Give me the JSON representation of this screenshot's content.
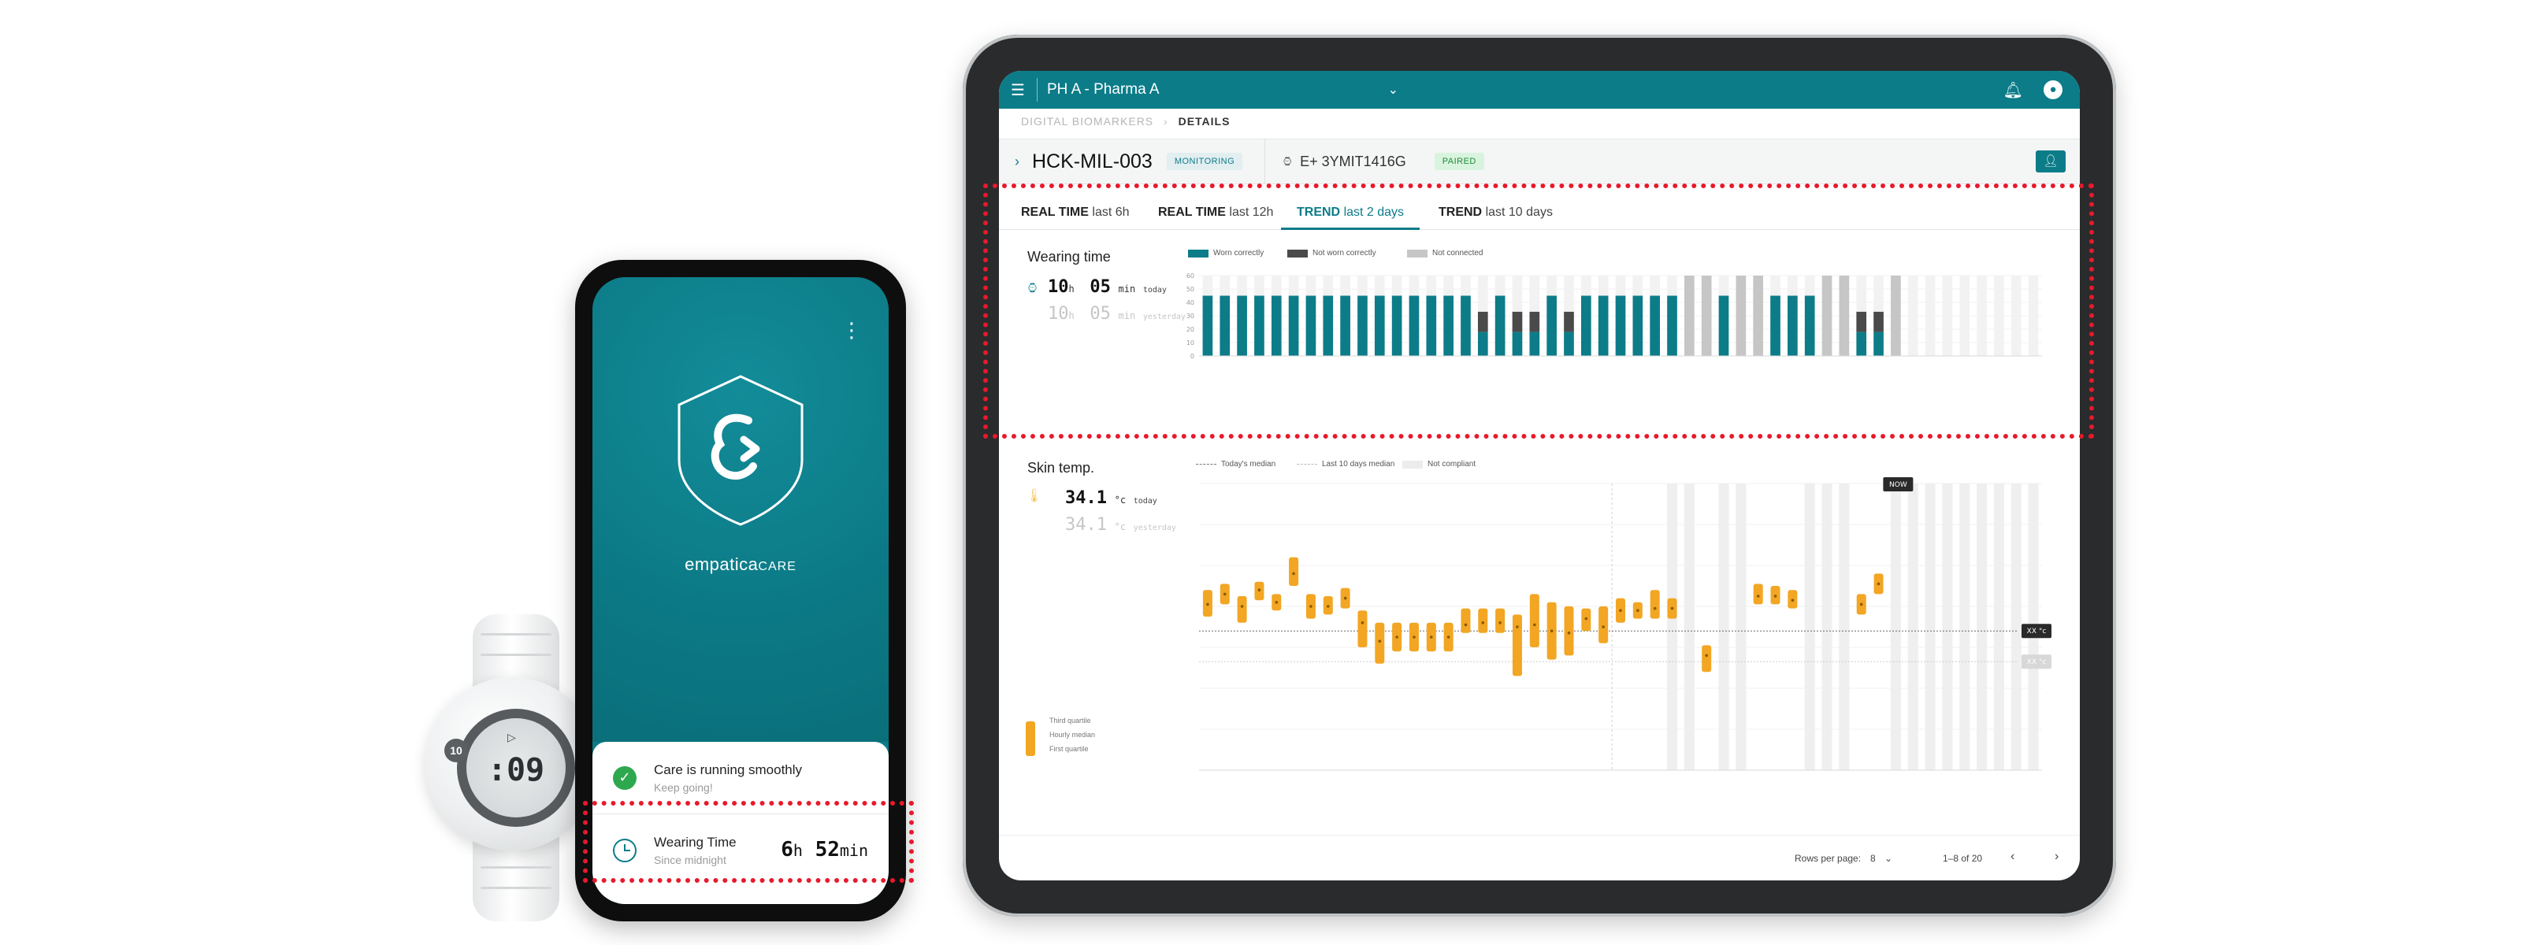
{
  "watch": {
    "time": ":09",
    "badge": "10"
  },
  "phone": {
    "brand": "empatica",
    "brand_suffix": "CARE",
    "status_title": "Care is running smoothly",
    "status_sub": "Keep going!",
    "wear_title": "Wearing Time",
    "wear_sub": "Since midnight",
    "wear_hours": "6",
    "wear_hours_unit": "h",
    "wear_minutes": "52",
    "wear_minutes_unit": "min"
  },
  "tablet": {
    "org": "PH A - Pharma A",
    "breadcrumb": [
      "DIGITAL BIOMARKERS",
      "DETAILS"
    ],
    "device_id": "HCK-MIL-003",
    "monitoring_tag": "MONITORING",
    "serial": "E+ 3YMIT1416G",
    "paired_tag": "PAIRED",
    "tabs": [
      {
        "bold": "REAL TIME",
        "rest": "last 6h"
      },
      {
        "bold": "REAL TIME",
        "rest": "last 12h"
      },
      {
        "bold": "TREND",
        "rest": "last 2 days"
      },
      {
        "bold": "TREND",
        "rest": "last 10 days"
      }
    ],
    "wearing": {
      "title": "Wearing time",
      "today_h": "10",
      "h_unit": "h",
      "today_m": "05",
      "min_unit": "min",
      "today_label": "today",
      "yesterday_h": "10",
      "yesterday_m": "05",
      "yesterday_label": "yesterday"
    },
    "skin": {
      "title": "Skin temp.",
      "today": "34.1",
      "unit": "°c",
      "today_label": "today",
      "yesterday": "34.1",
      "yesterday_label": "yesterday",
      "quartile_labels": [
        "Third quartile",
        "Hourly median",
        "First quartile"
      ]
    },
    "footer": {
      "rows_label": "Rows per page:",
      "rows_value": "8",
      "range": "1–8 of 20"
    }
  },
  "colors": {
    "teal": "#0c7c89",
    "dark_gray": "#4a4a4a",
    "light_gray": "#c6c6c6",
    "orange": "#f2a623",
    "paired_bg": "#d9f4de",
    "highlight": "#e8192c"
  },
  "chart_data": [
    {
      "type": "bar",
      "title": "Wearing time",
      "legend": [
        "Worn correctly",
        "Not worn correctly",
        "Not connected"
      ],
      "legend_placement": "top-left",
      "ylim": [
        0,
        60
      ],
      "yticks": [
        0,
        10,
        20,
        30,
        40,
        50,
        60
      ],
      "series": [
        {
          "name": "Worn correctly",
          "values": [
            45,
            45,
            45,
            45,
            45,
            45,
            45,
            45,
            45,
            45,
            45,
            45,
            45,
            45,
            45,
            45,
            18,
            45,
            18,
            18,
            45,
            18,
            45,
            45,
            45,
            45,
            45,
            45,
            0,
            0,
            45,
            0,
            0,
            45,
            45,
            45,
            0,
            0,
            18,
            18,
            0,
            0,
            0,
            0,
            0,
            0,
            0,
            0,
            0
          ]
        },
        {
          "name": "Not worn correctly",
          "values": [
            0,
            0,
            0,
            0,
            0,
            0,
            0,
            0,
            0,
            0,
            0,
            0,
            0,
            0,
            0,
            0,
            15,
            0,
            15,
            15,
            0,
            15,
            0,
            0,
            0,
            0,
            0,
            0,
            0,
            0,
            0,
            0,
            0,
            0,
            0,
            0,
            0,
            0,
            15,
            15,
            0,
            0,
            0,
            0,
            0,
            0,
            0,
            0,
            0
          ]
        },
        {
          "name": "Not connected",
          "values": [
            0,
            0,
            0,
            0,
            0,
            0,
            0,
            0,
            0,
            0,
            0,
            0,
            0,
            0,
            0,
            0,
            0,
            0,
            0,
            0,
            0,
            0,
            0,
            0,
            0,
            0,
            0,
            0,
            60,
            60,
            0,
            60,
            60,
            0,
            0,
            0,
            60,
            60,
            0,
            0,
            60,
            0,
            0,
            0,
            0,
            0,
            0,
            0,
            0
          ]
        }
      ]
    },
    {
      "type": "scatter",
      "title": "Skin temp.",
      "legend": [
        "Today's median",
        "Last 10 days median",
        "Not compliant"
      ],
      "annotations": [
        "NOW",
        "XX °c",
        "XX °c"
      ],
      "boxes": [
        {
          "x": 1,
          "q1": 33.5,
          "med": 34.1,
          "q3": 34.8
        },
        {
          "x": 2,
          "q1": 34.1,
          "med": 34.6,
          "q3": 35.1
        },
        {
          "x": 3,
          "q1": 33.2,
          "med": 34.0,
          "q3": 34.5
        },
        {
          "x": 4,
          "q1": 34.3,
          "med": 34.8,
          "q3": 35.2
        },
        {
          "x": 5,
          "q1": 33.8,
          "med": 34.2,
          "q3": 34.6
        },
        {
          "x": 6,
          "q1": 35.0,
          "med": 35.6,
          "q3": 36.4
        },
        {
          "x": 7,
          "q1": 33.4,
          "med": 34.0,
          "q3": 34.6
        },
        {
          "x": 8,
          "q1": 33.6,
          "med": 34.0,
          "q3": 34.5
        },
        {
          "x": 9,
          "q1": 33.9,
          "med": 34.4,
          "q3": 34.9
        },
        {
          "x": 10,
          "q1": 32.0,
          "med": 33.2,
          "q3": 33.8
        },
        {
          "x": 11,
          "q1": 31.2,
          "med": 32.3,
          "q3": 33.2
        },
        {
          "x": 12,
          "q1": 31.8,
          "med": 32.5,
          "q3": 33.2
        },
        {
          "x": 13,
          "q1": 31.8,
          "med": 32.5,
          "q3": 33.2
        },
        {
          "x": 14,
          "q1": 31.8,
          "med": 32.5,
          "q3": 33.2
        },
        {
          "x": 15,
          "q1": 31.8,
          "med": 32.5,
          "q3": 33.2
        },
        {
          "x": 16,
          "q1": 32.7,
          "med": 33.1,
          "q3": 33.9
        },
        {
          "x": 17,
          "q1": 32.7,
          "med": 33.2,
          "q3": 33.9
        },
        {
          "x": 18,
          "q1": 32.7,
          "med": 33.2,
          "q3": 33.9
        },
        {
          "x": 19,
          "q1": 30.6,
          "med": 33.0,
          "q3": 33.6
        },
        {
          "x": 20,
          "q1": 32.0,
          "med": 33.1,
          "q3": 34.6
        },
        {
          "x": 21,
          "q1": 31.4,
          "med": 32.8,
          "q3": 34.2
        },
        {
          "x": 22,
          "q1": 31.6,
          "med": 32.7,
          "q3": 34.0
        },
        {
          "x": 23,
          "q1": 32.8,
          "med": 33.4,
          "q3": 33.9
        },
        {
          "x": 24,
          "q1": 32.2,
          "med": 33.0,
          "q3": 34.0
        },
        {
          "x": 25,
          "q1": 33.2,
          "med": 33.8,
          "q3": 34.4
        },
        {
          "x": 26,
          "q1": 33.4,
          "med": 33.8,
          "q3": 34.2
        },
        {
          "x": 27,
          "q1": 33.4,
          "med": 33.9,
          "q3": 34.8
        },
        {
          "x": 28,
          "q1": 33.4,
          "med": 33.9,
          "q3": 34.4
        },
        {
          "x": 30,
          "q1": 30.8,
          "med": 31.6,
          "q3": 32.1
        },
        {
          "x": 33,
          "q1": 34.1,
          "med": 34.5,
          "q3": 35.1
        },
        {
          "x": 34,
          "q1": 34.1,
          "med": 34.5,
          "q3": 35.0
        },
        {
          "x": 35,
          "q1": 33.9,
          "med": 34.3,
          "q3": 34.8
        },
        {
          "x": 39,
          "q1": 33.6,
          "med": 34.1,
          "q3": 34.6
        },
        {
          "x": 40,
          "q1": 34.6,
          "med": 35.1,
          "q3": 35.6
        }
      ]
    }
  ]
}
